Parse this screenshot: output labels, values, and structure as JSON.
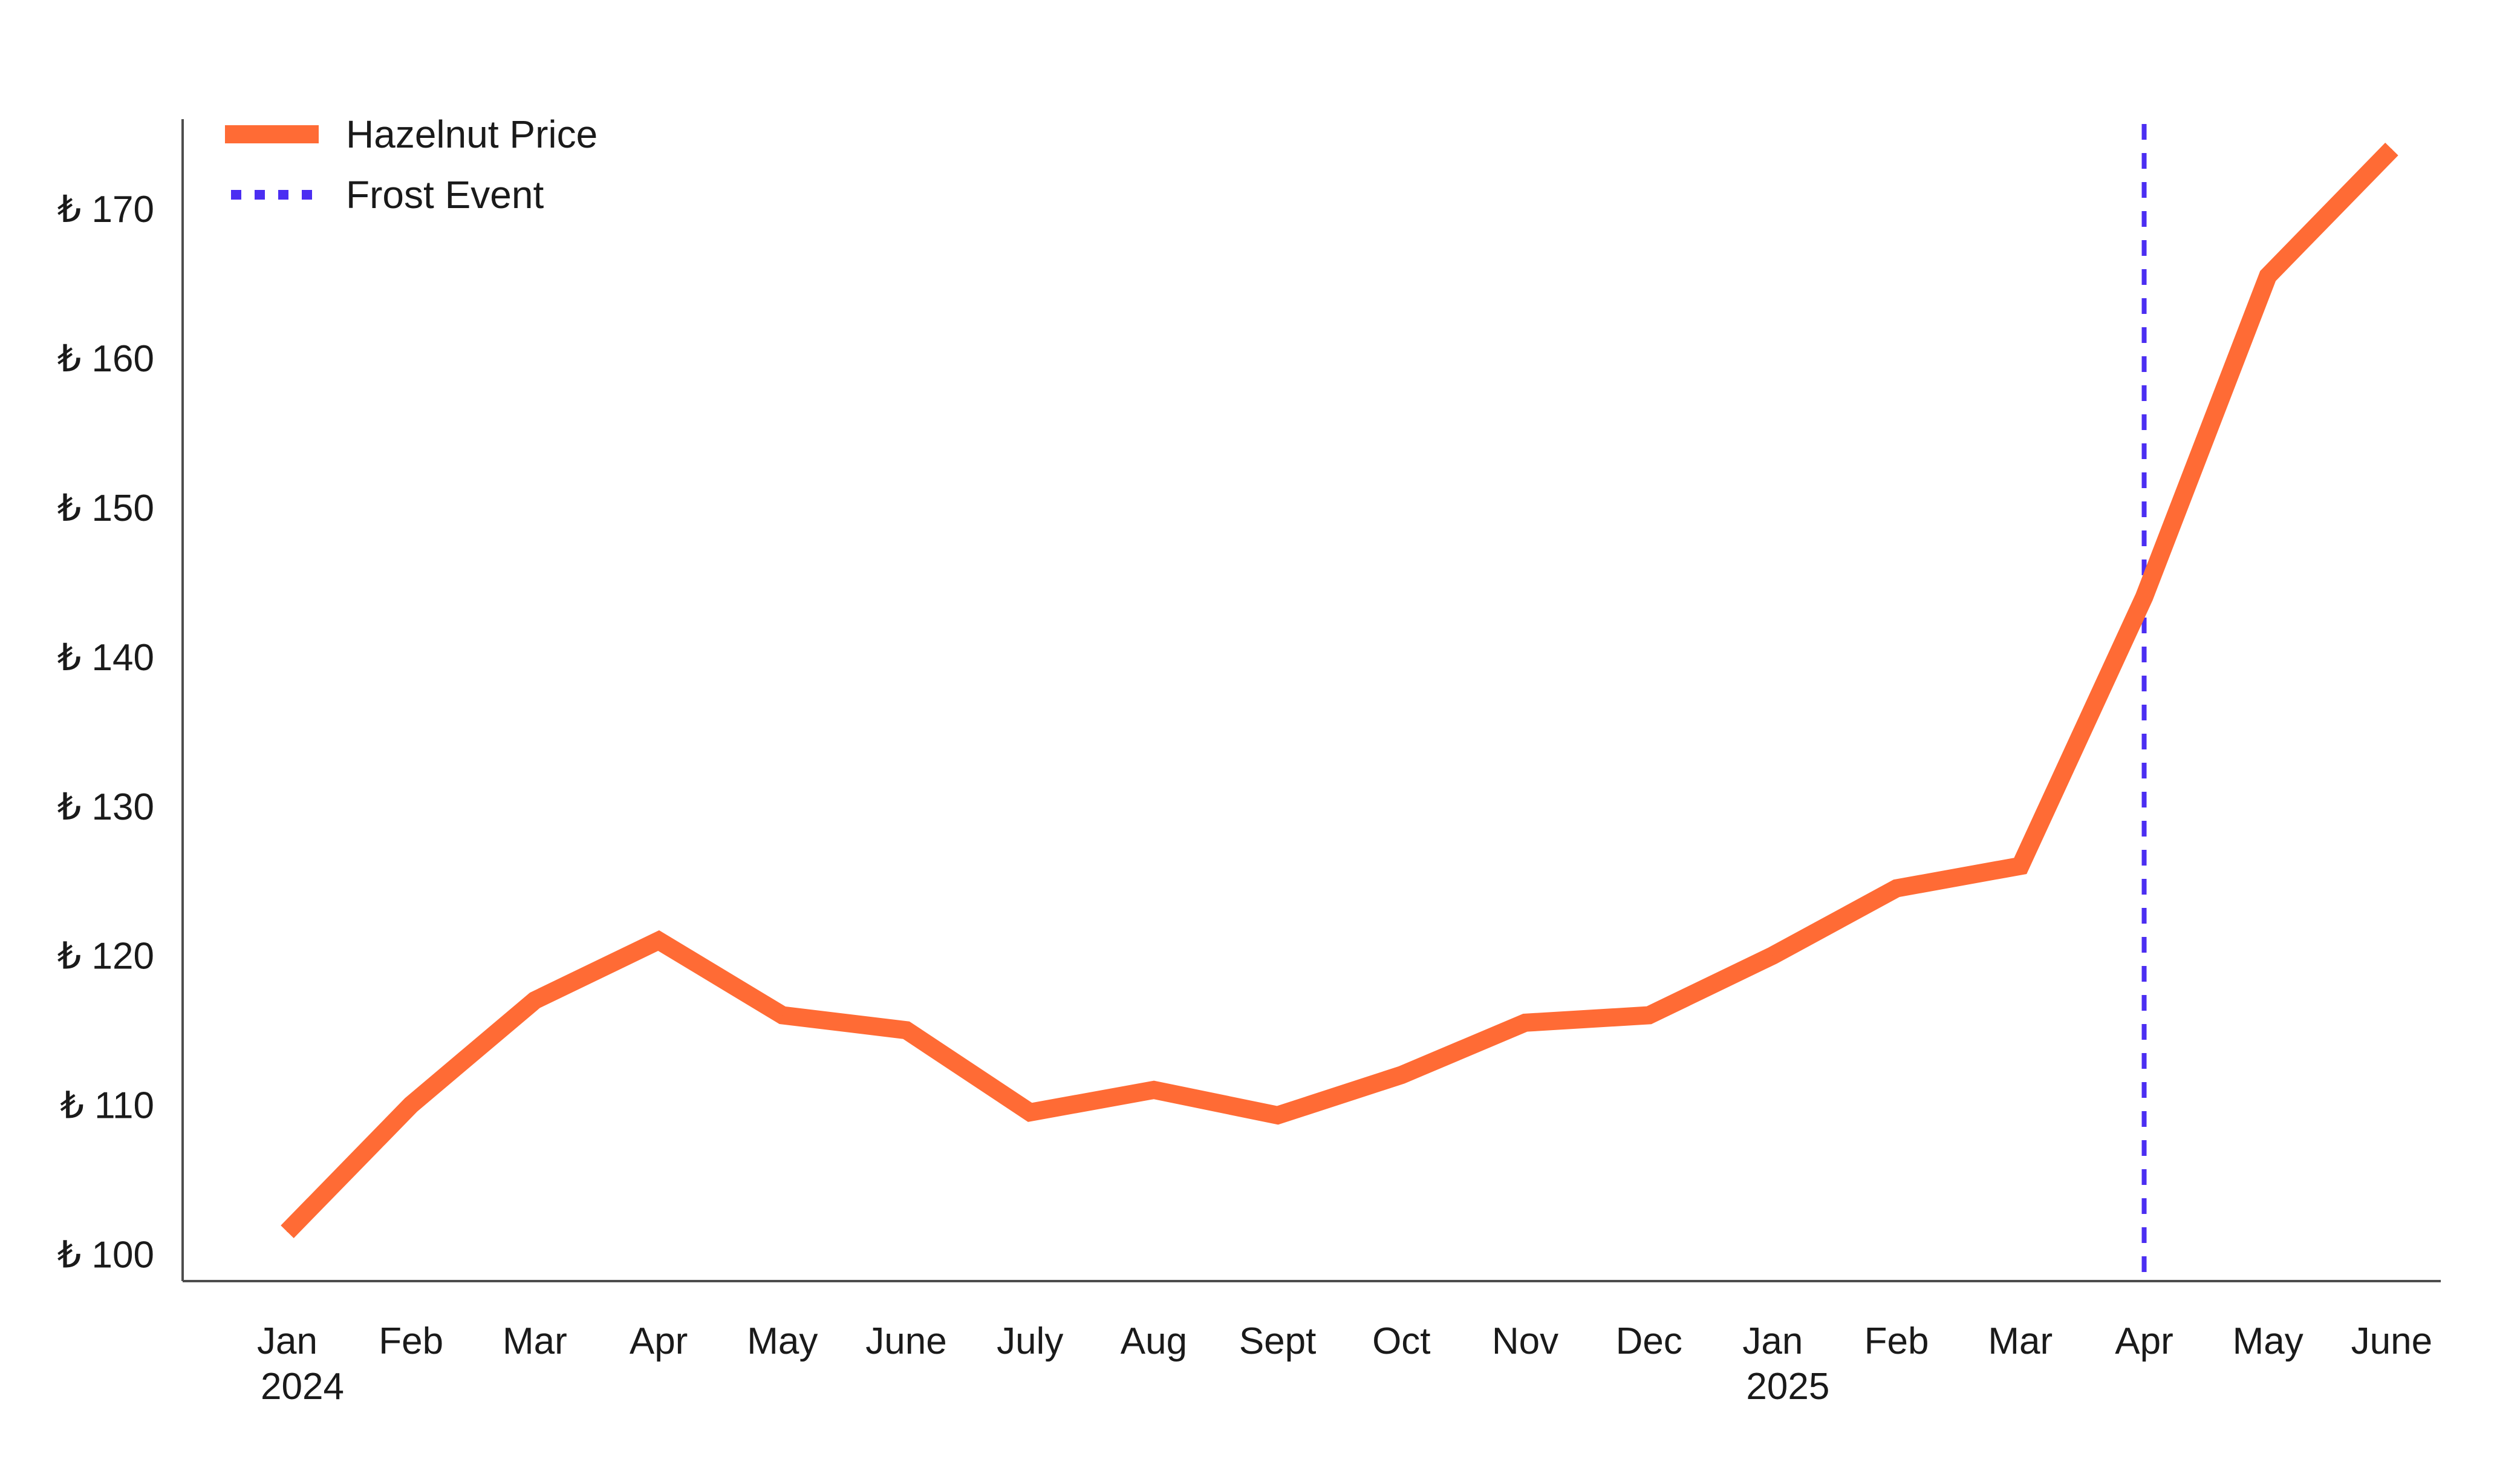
{
  "chart_data": {
    "type": "line",
    "x_labels": [
      {
        "line1": "Jan",
        "line2": "2024"
      },
      {
        "line1": "Feb",
        "line2": ""
      },
      {
        "line1": "Mar",
        "line2": ""
      },
      {
        "line1": "Apr",
        "line2": ""
      },
      {
        "line1": "May",
        "line2": ""
      },
      {
        "line1": "June",
        "line2": ""
      },
      {
        "line1": "July",
        "line2": ""
      },
      {
        "line1": "Aug",
        "line2": ""
      },
      {
        "line1": "Sept",
        "line2": ""
      },
      {
        "line1": "Oct",
        "line2": ""
      },
      {
        "line1": "Nov",
        "line2": ""
      },
      {
        "line1": "Dec",
        "line2": ""
      },
      {
        "line1": "Jan",
        "line2": "2025"
      },
      {
        "line1": "Feb",
        "line2": ""
      },
      {
        "line1": "Mar",
        "line2": ""
      },
      {
        "line1": "Apr",
        "line2": ""
      },
      {
        "line1": "May",
        "line2": ""
      },
      {
        "line1": "June",
        "line2": ""
      }
    ],
    "x": [
      "2024-01",
      "2024-02",
      "2024-03",
      "2024-04",
      "2024-05",
      "2024-06",
      "2024-07",
      "2024-08",
      "2024-09",
      "2024-10",
      "2024-11",
      "2024-12",
      "2025-01",
      "2025-02",
      "2025-03",
      "2025-04",
      "2025-05",
      "2025-06"
    ],
    "series": [
      {
        "name": "Hazelnut Price",
        "color": "#FF6B35",
        "style": "solid",
        "values": [
          101.5,
          110,
          117,
          121,
          116,
          115,
          109.5,
          111,
          109.3,
          112,
          115.5,
          116,
          120,
          124.5,
          126,
          144,
          165.5,
          174
        ]
      }
    ],
    "annotations": [
      {
        "name": "Frost Event",
        "type": "vertical-line",
        "x": "2025-04",
        "color": "#4B2EF2",
        "style": "dotted"
      }
    ],
    "y_ticks": [
      {
        "value": 100,
        "label": "₺ 100"
      },
      {
        "value": 110,
        "label": "₺ 110"
      },
      {
        "value": 120,
        "label": "₺ 120"
      },
      {
        "value": 130,
        "label": "₺ 130"
      },
      {
        "value": 140,
        "label": "₺ 140"
      },
      {
        "value": 150,
        "label": "₺ 150"
      },
      {
        "value": 160,
        "label": "₺ 160"
      },
      {
        "value": 170,
        "label": "₺ 170"
      }
    ],
    "ylim": [
      98.2,
      176
    ],
    "title": "",
    "xlabel": "",
    "ylabel": "",
    "grid": false,
    "legend_position": "top-left"
  }
}
